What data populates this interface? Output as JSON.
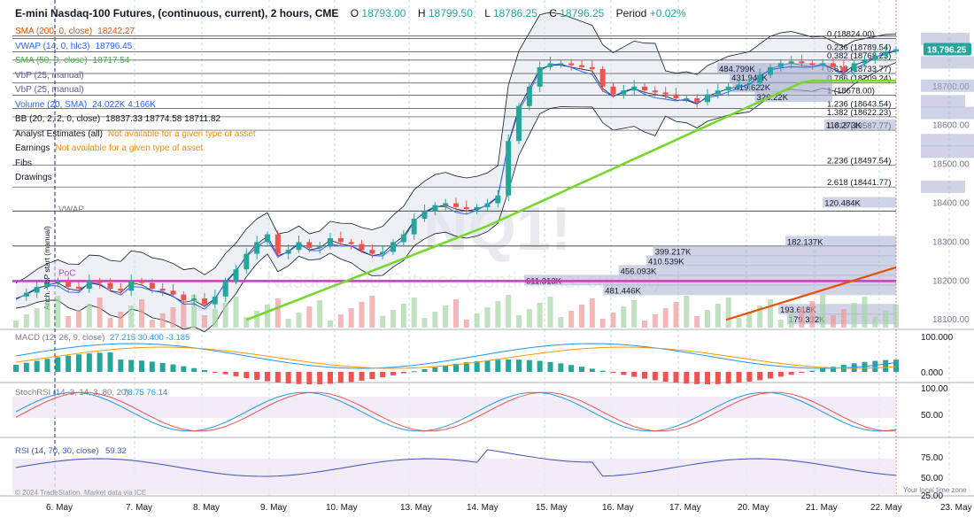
{
  "header": {
    "symbol": "E-mini Nasdaq-100 Futures, (continuous, current), 2 hours, CME",
    "o_label": "O",
    "o_value": "18793.00",
    "h_label": "H",
    "h_value": "18799.50",
    "l_label": "L",
    "l_value": "18786.25",
    "c_label": "C",
    "c_value": "18796.25",
    "period_label": "Period",
    "period_value": "+0.02%"
  },
  "legend": [
    {
      "name": "SMA (200, 0, close)",
      "values": "18242.27",
      "color": "#e65100"
    },
    {
      "name": "VWAP (14, 0, hlc3)",
      "values": "18796.45",
      "color": "#2962ff"
    },
    {
      "name": "SMA (50, 0, close)",
      "values": "18717.54",
      "color": "#4caf50"
    },
    {
      "name": "VbP (25, manual)",
      "values": "",
      "color": "#5c5c99"
    },
    {
      "name": "VbP (25, manual)",
      "values": "",
      "color": "#5c5c99"
    },
    {
      "name": "Volume (20, SMA)",
      "values": "24.022K  4.166K",
      "color": "#2962ff"
    },
    {
      "name": "BB (20, 2, 2, 0, close)",
      "values": "18837.33  18774.58  18711.82",
      "color": "#131722"
    },
    {
      "name": "Analyst Estimates (all)",
      "values": "Not available for a given type of asset",
      "color": "#131722",
      "warn": true
    },
    {
      "name": "Earnings",
      "values": "Not available for a given type of asset",
      "color": "#131722",
      "warn": true
    },
    {
      "name": "Fibs",
      "values": "",
      "color": "#131722"
    },
    {
      "name": "Drawings",
      "values": "",
      "color": "#131722"
    }
  ],
  "chart_data": {
    "type": "candlestick",
    "x_labels": [
      "6. May",
      "7. May",
      "8. May",
      "9. May",
      "10. May",
      "13. May",
      "14. May",
      "15. May",
      "16. May",
      "17. May",
      "20. May",
      "21. May",
      "22. May",
      "23. May"
    ],
    "price_axis": {
      "ticks": [
        "18100.00",
        "18200.00",
        "18300.00",
        "18400.00",
        "18500.00",
        "18600.00",
        "18700.00",
        "18800.00"
      ],
      "ylim": [
        18080,
        18900
      ],
      "last_price": "18,796.25"
    },
    "close_path": [
      18160,
      18170,
      18185,
      18195,
      18200,
      18185,
      18180,
      18200,
      18195,
      18180,
      18175,
      18200,
      18195,
      18180,
      18175,
      18165,
      18150,
      18155,
      18140,
      18160,
      18200,
      18230,
      18270,
      18300,
      18320,
      18270,
      18280,
      18300,
      18285,
      18290,
      18310,
      18300,
      18295,
      18280,
      18270,
      18275,
      18300,
      18320,
      18360,
      18380,
      18395,
      18400,
      18390,
      18385,
      18390,
      18400,
      18420,
      18560,
      18650,
      18700,
      18750,
      18760,
      18760,
      18755,
      18750,
      18745,
      18700,
      18680,
      18690,
      18700,
      18690,
      18685,
      18680,
      18670,
      18670,
      18660,
      18680,
      18690,
      18700,
      18705,
      18710,
      18730,
      18750,
      18760,
      18765,
      18760,
      18755,
      18760,
      18750,
      18740,
      18760,
      18770,
      18780,
      18790,
      18796
    ],
    "fib_levels": [
      {
        "label": "0 (18824.00)",
        "price": 18824.0
      },
      {
        "label": "0.236 (18789.54)",
        "price": 18789.54
      },
      {
        "label": "0.382 (18768.23)",
        "price": 18768.23
      },
      {
        "label": "0.618 (18733.77)",
        "price": 18733.77
      },
      {
        "label": "0.786 (18709.24)",
        "price": 18709.24
      },
      {
        "label": "1 (18678.00)",
        "price": 18678.0
      },
      {
        "label": "1.236 (18643.54)",
        "price": 18643.54
      },
      {
        "label": "1.382 (18622.23)",
        "price": 18622.23
      },
      {
        "label": "1.618 (18587.77)",
        "price": 18587.77
      },
      {
        "label": "2.236 (18497.54)",
        "price": 18497.54
      },
      {
        "label": "2.618 (18441.77)",
        "price": 18441.77
      }
    ],
    "vbp_main": [
      {
        "label": "611.313K",
        "price": 18200,
        "volume": 611.313
      },
      {
        "label": "481.446K",
        "price": 18175,
        "volume": 481.446
      },
      {
        "label": "456.093K",
        "price": 18225,
        "volume": 456.093
      },
      {
        "label": "410.539K",
        "price": 18250,
        "volume": 410.539
      },
      {
        "label": "399.217K",
        "price": 18275,
        "volume": 399.217
      },
      {
        "label": "193.618K",
        "price": 18125,
        "volume": 193.618
      },
      {
        "label": "182.137K",
        "price": 18300,
        "volume": 182.137
      },
      {
        "label": "120.484K",
        "price": 18400,
        "volume": 120.484
      },
      {
        "label": "118.273K",
        "price": 18600,
        "volume": 118.273
      },
      {
        "label": "179.332K",
        "price": 18100,
        "volume": 179.332
      }
    ],
    "vbp_recent": [
      {
        "label": "484.799K",
        "price": 18745,
        "volume": 484.799
      },
      {
        "label": "431.946K",
        "price": 18722,
        "volume": 431.946
      },
      {
        "label": "419.622K",
        "price": 18697,
        "volume": 419.622
      },
      {
        "label": "326.22K",
        "price": 18672,
        "volume": 326.22
      }
    ],
    "poc_label": "PoC",
    "vwap_label": "VWAP",
    "anchored_label": "Anch. VbP start (manual)",
    "watermark": "NQ1!",
    "watermark_sub": "Nasdaq-100 Futures (continuous: current)"
  },
  "macd": {
    "label": "MACD (12, 26, 9, close)",
    "v1": "27.215",
    "v2": "30.400",
    "v3": "-3.185",
    "ticks": [
      "100.000",
      "0.000"
    ]
  },
  "stoch": {
    "label": "StochRSI (14, 3, 14, 3, 80, 20)",
    "v1": "78.75",
    "v2": "76.14",
    "ticks": [
      "100.00",
      "50.00"
    ]
  },
  "rsi": {
    "label": "RSI (14, 70, 30, close)",
    "v1": "59.32",
    "ticks": [
      "75.00",
      "50.00",
      "25.00"
    ]
  },
  "footer": {
    "credit": "© 2024 TradeStation. Market data via ICE",
    "tz": "Your local time zone"
  },
  "colors": {
    "up": "#26a69a",
    "down": "#ef5350",
    "sma50": "#76d82a",
    "sma200": "#e65100",
    "vwap": "#2962ff",
    "poc": "#c040c0",
    "vbp": "#a8aed0",
    "bb": "#131722"
  }
}
